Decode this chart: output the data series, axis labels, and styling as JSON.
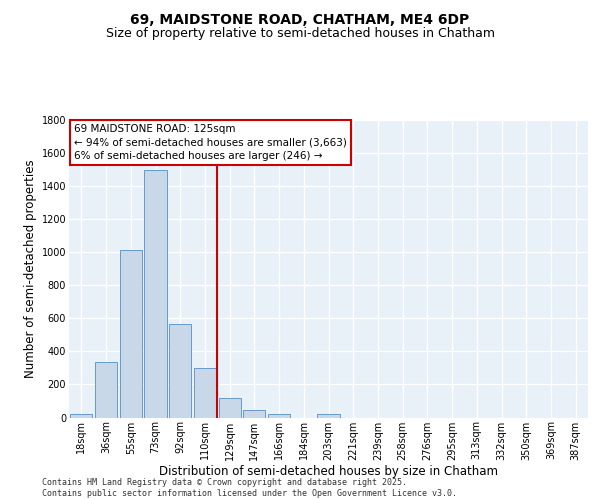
{
  "title_line1": "69, MAIDSTONE ROAD, CHATHAM, ME4 6DP",
  "title_line2": "Size of property relative to semi-detached houses in Chatham",
  "xlabel": "Distribution of semi-detached houses by size in Chatham",
  "ylabel": "Number of semi-detached properties",
  "bin_labels": [
    "18sqm",
    "36sqm",
    "55sqm",
    "73sqm",
    "92sqm",
    "110sqm",
    "129sqm",
    "147sqm",
    "166sqm",
    "184sqm",
    "203sqm",
    "221sqm",
    "239sqm",
    "258sqm",
    "276sqm",
    "295sqm",
    "313sqm",
    "332sqm",
    "350sqm",
    "369sqm",
    "387sqm"
  ],
  "bar_heights": [
    20,
    335,
    1015,
    1500,
    565,
    300,
    120,
    45,
    20,
    0,
    20,
    0,
    0,
    0,
    0,
    0,
    0,
    0,
    0,
    0,
    0
  ],
  "bar_color": "#c8d8e8",
  "bar_edge_color": "#6699cc",
  "background_color": "#e8f0f8",
  "grid_color": "#ffffff",
  "annotation_text": "69 MAIDSTONE ROAD: 125sqm\n← 94% of semi-detached houses are smaller (3,663)\n6% of semi-detached houses are larger (246) →",
  "annotation_box_color": "#ffffff",
  "annotation_box_edge_color": "#cc0000",
  "vline_x": 5.5,
  "vline_color": "#cc0000",
  "ylim": [
    0,
    1800
  ],
  "yticks": [
    0,
    200,
    400,
    600,
    800,
    1000,
    1200,
    1400,
    1600,
    1800
  ],
  "footer_text": "Contains HM Land Registry data © Crown copyright and database right 2025.\nContains public sector information licensed under the Open Government Licence v3.0.",
  "title_fontsize": 10,
  "subtitle_fontsize": 9,
  "axis_label_fontsize": 8.5,
  "tick_fontsize": 7,
  "annotation_fontsize": 7.5,
  "footer_fontsize": 6
}
